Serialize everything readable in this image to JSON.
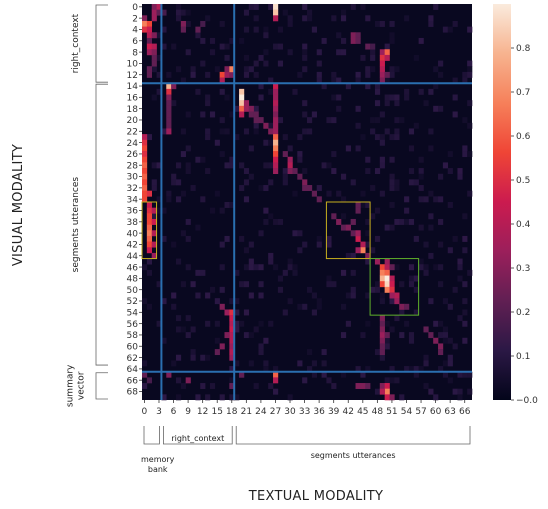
{
  "chart_data": {
    "type": "heatmap",
    "xlabel": "TEXTUAL MODALITY",
    "ylabel": "VISUAL MODALITY",
    "n_cols": 68,
    "n_rows": 70,
    "x_ticks": [
      0,
      3,
      6,
      9,
      12,
      15,
      18,
      21,
      24,
      27,
      30,
      33,
      36,
      39,
      42,
      45,
      48,
      51,
      54,
      57,
      60,
      63,
      66
    ],
    "y_ticks": [
      0,
      2,
      4,
      6,
      8,
      10,
      12,
      14,
      16,
      18,
      20,
      22,
      24,
      26,
      28,
      30,
      32,
      34,
      36,
      38,
      40,
      42,
      44,
      46,
      48,
      50,
      52,
      54,
      56,
      58,
      60,
      62,
      64,
      66,
      68
    ],
    "colorbar": {
      "min": 0.0,
      "max": 0.9,
      "ticks": [
        0.0,
        0.1,
        0.2,
        0.3,
        0.4,
        0.5,
        0.6,
        0.7,
        0.8
      ]
    },
    "x_groups": [
      {
        "label": "memory\nbank",
        "start": 0,
        "end": 3
      },
      {
        "label": "right_context",
        "start": 4,
        "end": 18
      },
      {
        "label": "segments utterances",
        "start": 19,
        "end": 67
      }
    ],
    "y_groups": [
      {
        "label": "right_context",
        "start": 0,
        "end": 13
      },
      {
        "label": "segments utterances",
        "start": 14,
        "end": 63
      },
      {
        "label": "summary\nvector",
        "start": 65,
        "end": 69
      }
    ],
    "separators": {
      "vertical": [
        4,
        19
      ],
      "horizontal": [
        14,
        65
      ],
      "color": "#2a6fb0"
    },
    "highlight_boxes": [
      {
        "x0": 0,
        "x1": 3,
        "y0": 35,
        "y1": 45,
        "color": "#c8b01e"
      },
      {
        "x0": 38,
        "x1": 47,
        "y0": 35,
        "y1": 45,
        "color": "#c8b01e"
      },
      {
        "x0": 47,
        "x1": 57,
        "y0": 45,
        "y1": 55,
        "color": "#5fb02a"
      }
    ],
    "cells": [
      [
        27,
        0,
        0.85
      ],
      [
        27,
        1,
        0.75
      ],
      [
        27,
        2,
        0.35
      ],
      [
        2,
        0,
        0.25
      ],
      [
        4,
        1,
        0.15
      ],
      [
        3,
        0,
        0.35
      ],
      [
        2,
        1,
        0.3
      ],
      [
        3,
        1,
        0.2
      ],
      [
        2,
        2,
        0.3
      ],
      [
        0,
        2,
        0.25
      ],
      [
        0,
        3,
        0.6
      ],
      [
        1,
        3,
        0.5
      ],
      [
        0,
        4,
        0.45
      ],
      [
        1,
        4,
        0.4
      ],
      [
        1,
        5,
        0.35
      ],
      [
        2,
        5,
        0.25
      ],
      [
        8,
        3,
        0.25
      ],
      [
        8,
        4,
        0.2
      ],
      [
        12,
        3,
        0.15
      ],
      [
        11,
        4,
        0.2
      ],
      [
        1,
        6,
        0.2
      ],
      [
        1,
        7,
        0.4
      ],
      [
        2,
        7,
        0.35
      ],
      [
        1,
        8,
        0.3
      ],
      [
        2,
        8,
        0.25
      ],
      [
        2,
        9,
        0.2
      ],
      [
        2,
        10,
        0.2
      ],
      [
        1,
        11,
        0.2
      ],
      [
        1,
        12,
        0.2
      ],
      [
        43,
        5,
        0.25
      ],
      [
        44,
        5,
        0.2
      ],
      [
        43,
        6,
        0.25
      ],
      [
        44,
        6,
        0.2
      ],
      [
        46,
        7,
        0.2
      ],
      [
        47,
        7,
        0.15
      ],
      [
        49,
        8,
        0.3
      ],
      [
        50,
        8,
        0.55
      ],
      [
        49,
        9,
        0.45
      ],
      [
        50,
        9,
        0.35
      ],
      [
        49,
        10,
        0.4
      ],
      [
        49,
        11,
        0.35
      ],
      [
        49,
        12,
        0.3
      ],
      [
        50,
        12,
        0.2
      ],
      [
        49,
        13,
        0.25
      ],
      [
        16,
        12,
        0.5
      ],
      [
        17,
        12,
        0.3
      ],
      [
        16,
        13,
        0.35
      ],
      [
        18,
        12,
        0.25
      ],
      [
        17,
        11,
        0.25
      ],
      [
        18,
        11,
        0.6
      ],
      [
        5,
        14,
        0.7
      ],
      [
        6,
        14,
        0.25
      ],
      [
        5,
        15,
        0.45
      ],
      [
        5,
        16,
        0.25
      ],
      [
        5,
        17,
        0.2
      ],
      [
        5,
        18,
        0.2
      ],
      [
        5,
        19,
        0.2
      ],
      [
        5,
        20,
        0.2
      ],
      [
        5,
        21,
        0.2
      ],
      [
        5,
        22,
        0.3
      ],
      [
        20,
        15,
        0.75
      ],
      [
        20,
        16,
        0.9
      ],
      [
        20,
        17,
        0.75
      ],
      [
        20,
        18,
        0.55
      ],
      [
        20,
        19,
        0.35
      ],
      [
        21,
        17,
        0.3
      ],
      [
        21,
        18,
        0.3
      ],
      [
        22,
        18,
        0.25
      ],
      [
        22,
        19,
        0.2
      ],
      [
        23,
        19,
        0.2
      ],
      [
        23,
        20,
        0.2
      ],
      [
        24,
        20,
        0.2
      ],
      [
        25,
        21,
        0.25
      ],
      [
        26,
        22,
        0.25
      ],
      [
        27,
        14,
        0.4
      ],
      [
        27,
        15,
        0.3
      ],
      [
        27,
        16,
        0.3
      ],
      [
        27,
        17,
        0.35
      ],
      [
        27,
        18,
        0.3
      ],
      [
        27,
        19,
        0.25
      ],
      [
        27,
        20,
        0.3
      ],
      [
        27,
        21,
        0.3
      ],
      [
        27,
        22,
        0.3
      ],
      [
        27,
        23,
        0.55
      ],
      [
        27,
        24,
        0.7
      ],
      [
        27,
        25,
        0.6
      ],
      [
        27,
        26,
        0.5
      ],
      [
        27,
        27,
        0.4
      ],
      [
        27,
        28,
        0.35
      ],
      [
        27,
        29,
        0.3
      ],
      [
        0,
        23,
        0.35
      ],
      [
        0,
        24,
        0.45
      ],
      [
        0,
        25,
        0.5
      ],
      [
        0,
        26,
        0.45
      ],
      [
        0,
        27,
        0.5
      ],
      [
        0,
        28,
        0.55
      ],
      [
        0,
        29,
        0.5
      ],
      [
        0,
        30,
        0.55
      ],
      [
        0,
        31,
        0.5
      ],
      [
        0,
        32,
        0.55
      ],
      [
        0,
        33,
        0.5
      ],
      [
        1,
        33,
        0.45
      ],
      [
        0,
        34,
        0.5
      ],
      [
        1,
        35,
        0.4
      ],
      [
        1,
        36,
        0.45
      ],
      [
        1,
        37,
        0.5
      ],
      [
        1,
        38,
        0.5
      ],
      [
        1,
        39,
        0.55
      ],
      [
        1,
        40,
        0.6
      ],
      [
        1,
        41,
        0.55
      ],
      [
        1,
        42,
        0.5
      ],
      [
        1,
        43,
        0.4
      ],
      [
        2,
        36,
        0.35
      ],
      [
        2,
        38,
        0.4
      ],
      [
        2,
        40,
        0.35
      ],
      [
        2,
        42,
        0.35
      ],
      [
        2,
        44,
        0.3
      ],
      [
        29,
        26,
        0.2
      ],
      [
        30,
        27,
        0.3
      ],
      [
        30,
        28,
        0.35
      ],
      [
        30,
        29,
        0.25
      ],
      [
        31,
        29,
        0.2
      ],
      [
        32,
        30,
        0.2
      ],
      [
        33,
        31,
        0.25
      ],
      [
        33,
        32,
        0.2
      ],
      [
        34,
        32,
        0.2
      ],
      [
        35,
        33,
        0.2
      ],
      [
        36,
        34,
        0.2
      ],
      [
        39,
        37,
        0.2
      ],
      [
        40,
        38,
        0.25
      ],
      [
        41,
        39,
        0.2
      ],
      [
        42,
        39,
        0.25
      ],
      [
        43,
        38,
        0.2
      ],
      [
        43,
        40,
        0.2
      ],
      [
        44,
        41,
        0.4
      ],
      [
        44,
        40,
        0.3
      ],
      [
        45,
        42,
        0.35
      ],
      [
        45,
        43,
        0.6
      ],
      [
        44,
        43,
        0.3
      ],
      [
        46,
        44,
        0.25
      ],
      [
        44,
        35,
        0.2
      ],
      [
        44,
        36,
        0.2
      ],
      [
        48,
        45,
        0.3
      ],
      [
        49,
        46,
        0.5
      ],
      [
        50,
        46,
        0.35
      ],
      [
        49,
        47,
        0.6
      ],
      [
        50,
        47,
        0.55
      ],
      [
        49,
        48,
        0.7
      ],
      [
        50,
        48,
        0.9
      ],
      [
        51,
        48,
        0.35
      ],
      [
        49,
        49,
        0.5
      ],
      [
        50,
        49,
        0.8
      ],
      [
        51,
        49,
        0.4
      ],
      [
        50,
        50,
        0.6
      ],
      [
        51,
        50,
        0.45
      ],
      [
        52,
        51,
        0.35
      ],
      [
        51,
        51,
        0.3
      ],
      [
        52,
        52,
        0.3
      ],
      [
        53,
        53,
        0.25
      ],
      [
        54,
        53,
        0.2
      ],
      [
        50,
        45,
        0.3
      ],
      [
        51,
        46,
        0.2
      ],
      [
        49,
        55,
        0.25
      ],
      [
        49,
        56,
        0.2
      ],
      [
        49,
        57,
        0.25
      ],
      [
        49,
        58,
        0.3
      ],
      [
        49,
        59,
        0.25
      ],
      [
        49,
        60,
        0.2
      ],
      [
        49,
        61,
        0.2
      ],
      [
        50,
        58,
        0.2
      ],
      [
        58,
        57,
        0.2
      ],
      [
        59,
        58,
        0.2
      ],
      [
        60,
        59,
        0.25
      ],
      [
        61,
        60,
        0.25
      ],
      [
        61,
        61,
        0.2
      ],
      [
        16,
        53,
        0.25
      ],
      [
        17,
        54,
        0.3
      ],
      [
        18,
        54,
        0.45
      ],
      [
        18,
        55,
        0.4
      ],
      [
        18,
        56,
        0.35
      ],
      [
        18,
        57,
        0.4
      ],
      [
        18,
        58,
        0.35
      ],
      [
        18,
        59,
        0.35
      ],
      [
        18,
        60,
        0.3
      ],
      [
        18,
        61,
        0.35
      ],
      [
        18,
        62,
        0.3
      ],
      [
        17,
        58,
        0.25
      ],
      [
        16,
        60,
        0.25
      ],
      [
        15,
        61,
        0.2
      ],
      [
        5,
        65,
        0.25
      ],
      [
        27,
        65,
        0.55
      ],
      [
        27,
        66,
        0.35
      ],
      [
        20,
        65,
        0.2
      ],
      [
        9,
        66,
        0.25
      ],
      [
        18,
        67,
        0.2
      ],
      [
        44,
        67,
        0.25
      ],
      [
        45,
        67,
        0.25
      ],
      [
        46,
        67,
        0.2
      ],
      [
        49,
        67,
        0.25
      ],
      [
        50,
        67,
        0.4
      ],
      [
        50,
        68,
        0.6
      ],
      [
        49,
        68,
        0.35
      ],
      [
        50,
        69,
        0.4
      ],
      [
        51,
        69,
        0.25
      ],
      [
        0,
        65,
        0.2
      ],
      [
        1,
        66,
        0.15
      ]
    ]
  }
}
